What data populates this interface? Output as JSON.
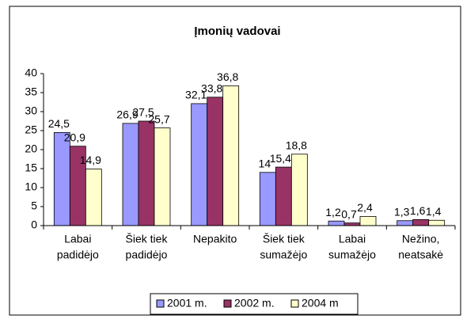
{
  "chart_data": {
    "type": "bar",
    "title": "Įmonių vadovai",
    "categories": [
      [
        "Labai",
        "padidėjo"
      ],
      [
        "Šiek tiek",
        "padidėjo"
      ],
      [
        "Nepakito"
      ],
      [
        "Šiek tiek",
        "sumažėjo"
      ],
      [
        "Labai",
        "sumažėjo"
      ],
      [
        "Nežino,",
        "neatsakė"
      ]
    ],
    "series": [
      {
        "name": "2001 m.",
        "color": "#9999ff",
        "values": [
          24.5,
          26.9,
          32.1,
          14,
          1.2,
          1.3
        ],
        "value_labels": [
          "24,5",
          "26,9",
          "32,1",
          "14",
          "1,2",
          "1,3"
        ]
      },
      {
        "name": "2002 m.",
        "color": "#993366",
        "values": [
          20.9,
          27.5,
          33.8,
          15.4,
          0.7,
          1.6
        ],
        "value_labels": [
          "20,9",
          "27,5",
          "33,8",
          "15,4",
          "0,7",
          "1,6"
        ]
      },
      {
        "name": "2004 m",
        "color": "#ffffcc",
        "values": [
          14.9,
          25.7,
          36.8,
          18.8,
          2.4,
          1.4
        ],
        "value_labels": [
          "14,9",
          "25,7",
          "36,8",
          "18,8",
          "2,4",
          "1,4"
        ]
      }
    ],
    "ylim": [
      0,
      40
    ],
    "yticks": [
      0,
      5,
      10,
      15,
      20,
      25,
      30,
      35,
      40
    ],
    "grid": false,
    "legend": "bottom"
  }
}
